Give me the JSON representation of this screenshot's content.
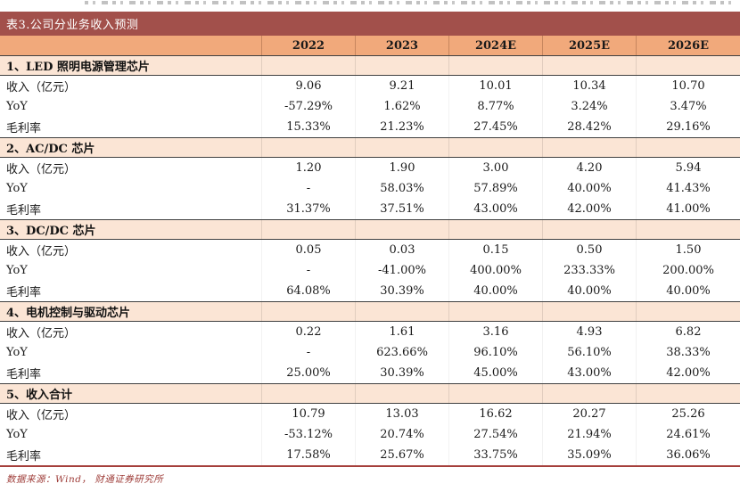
{
  "table_title": "表3.公司分业务收入预测",
  "columns": [
    "2022",
    "2023",
    "2024E",
    "2025E",
    "2026E"
  ],
  "sections": [
    {
      "header": "1、LED 照明电源管理芯片",
      "rows": [
        {
          "label": "收入（亿元）",
          "values": [
            "9.06",
            "9.21",
            "10.01",
            "10.34",
            "10.70"
          ]
        },
        {
          "label": "YoY",
          "values": [
            "-57.29%",
            "1.62%",
            "8.77%",
            "3.24%",
            "3.47%"
          ]
        },
        {
          "label": "毛利率",
          "values": [
            "15.33%",
            "21.23%",
            "27.45%",
            "28.42%",
            "29.16%"
          ]
        }
      ]
    },
    {
      "header": "2、AC/DC 芯片",
      "rows": [
        {
          "label": "收入（亿元）",
          "values": [
            "1.20",
            "1.90",
            "3.00",
            "4.20",
            "5.94"
          ]
        },
        {
          "label": "YoY",
          "values": [
            "-",
            "58.03%",
            "57.89%",
            "40.00%",
            "41.43%"
          ]
        },
        {
          "label": "毛利率",
          "values": [
            "31.37%",
            "37.51%",
            "43.00%",
            "42.00%",
            "41.00%"
          ]
        }
      ]
    },
    {
      "header": "3、DC/DC 芯片",
      "rows": [
        {
          "label": "收入（亿元）",
          "values": [
            "0.05",
            "0.03",
            "0.15",
            "0.50",
            "1.50"
          ]
        },
        {
          "label": "YoY",
          "values": [
            "-",
            "-41.00%",
            "400.00%",
            "233.33%",
            "200.00%"
          ]
        },
        {
          "label": "毛利率",
          "values": [
            "64.08%",
            "30.39%",
            "40.00%",
            "40.00%",
            "40.00%"
          ]
        }
      ]
    },
    {
      "header": "4、电机控制与驱动芯片",
      "rows": [
        {
          "label": "收入（亿元）",
          "values": [
            "0.22",
            "1.61",
            "3.16",
            "4.93",
            "6.82"
          ]
        },
        {
          "label": "YoY",
          "values": [
            "-",
            "623.66%",
            "96.10%",
            "56.10%",
            "38.33%"
          ]
        },
        {
          "label": "毛利率",
          "values": [
            "25.00%",
            "30.39%",
            "45.00%",
            "43.00%",
            "42.00%"
          ]
        }
      ]
    },
    {
      "header": "5、收入合计",
      "rows": [
        {
          "label": "收入（亿元）",
          "values": [
            "10.79",
            "13.03",
            "16.62",
            "20.27",
            "25.26"
          ]
        },
        {
          "label": "YoY",
          "values": [
            "-53.12%",
            "20.74%",
            "27.54%",
            "21.94%",
            "24.61%"
          ]
        },
        {
          "label": "毛利率",
          "values": [
            "17.58%",
            "25.67%",
            "33.75%",
            "35.09%",
            "36.06%"
          ]
        }
      ]
    }
  ],
  "footer": {
    "source": "数据来源：Wind， 财通证券研究所"
  },
  "colors": {
    "title_bar_bg": "#A2504B",
    "year_row_bg": "#F1A97B",
    "section_row_bg": "#FBE5D5",
    "rule_dark": "#404040",
    "rule_red": "#A53F3B",
    "footer_text": "#9E3C38"
  }
}
